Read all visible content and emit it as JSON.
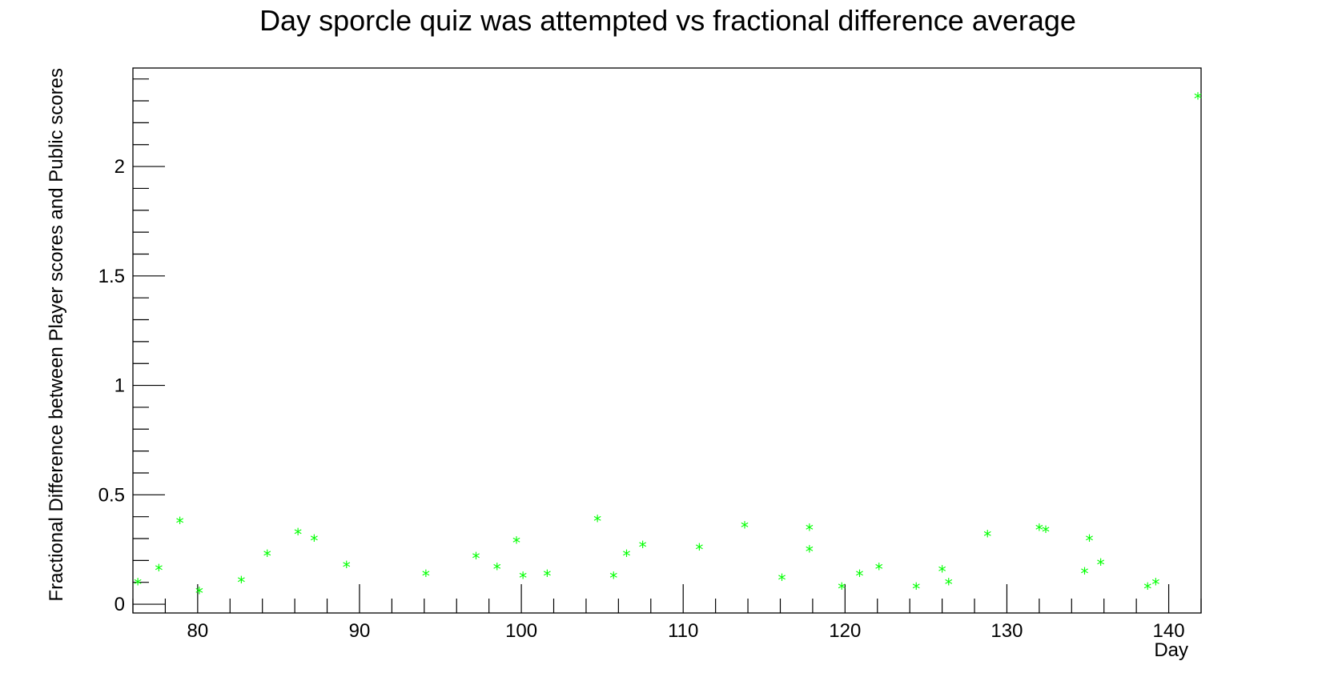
{
  "chart_data": {
    "type": "scatter",
    "title": "Day sporcle quiz was attempted vs fractional difference average",
    "xlabel": "Day",
    "ylabel": "Fractional Difference between Player scores and Public scores",
    "xlim": [
      76,
      142
    ],
    "ylim": [
      -0.04,
      2.45
    ],
    "xticks": [
      80,
      90,
      100,
      110,
      120,
      130,
      140
    ],
    "yticks": [
      0,
      0.5,
      1,
      1.5,
      2
    ],
    "x_minor_step": 2,
    "y_minor_step": 0.1,
    "marker": "*",
    "marker_color": "#00ff00",
    "series": [
      {
        "points": [
          {
            "x": 76.3,
            "y": 0.1
          },
          {
            "x": 77.6,
            "y": 0.165
          },
          {
            "x": 78.9,
            "y": 0.38
          },
          {
            "x": 80.1,
            "y": 0.06
          },
          {
            "x": 82.7,
            "y": 0.11
          },
          {
            "x": 84.3,
            "y": 0.23
          },
          {
            "x": 86.2,
            "y": 0.33
          },
          {
            "x": 87.2,
            "y": 0.3
          },
          {
            "x": 89.2,
            "y": 0.18
          },
          {
            "x": 94.1,
            "y": 0.14
          },
          {
            "x": 97.2,
            "y": 0.22
          },
          {
            "x": 98.5,
            "y": 0.17
          },
          {
            "x": 99.7,
            "y": 0.29
          },
          {
            "x": 100.1,
            "y": 0.13
          },
          {
            "x": 101.6,
            "y": 0.14
          },
          {
            "x": 104.7,
            "y": 0.39
          },
          {
            "x": 105.7,
            "y": 0.13
          },
          {
            "x": 106.5,
            "y": 0.23
          },
          {
            "x": 107.5,
            "y": 0.27
          },
          {
            "x": 111.0,
            "y": 0.26
          },
          {
            "x": 113.8,
            "y": 0.36
          },
          {
            "x": 116.1,
            "y": 0.12
          },
          {
            "x": 117.8,
            "y": 0.35
          },
          {
            "x": 117.8,
            "y": 0.25
          },
          {
            "x": 119.8,
            "y": 0.08
          },
          {
            "x": 120.9,
            "y": 0.14
          },
          {
            "x": 122.1,
            "y": 0.17
          },
          {
            "x": 124.4,
            "y": 0.08
          },
          {
            "x": 126.0,
            "y": 0.16
          },
          {
            "x": 126.4,
            "y": 0.1
          },
          {
            "x": 128.8,
            "y": 0.32
          },
          {
            "x": 132.0,
            "y": 0.35
          },
          {
            "x": 132.4,
            "y": 0.34
          },
          {
            "x": 134.8,
            "y": 0.15
          },
          {
            "x": 135.1,
            "y": 0.3
          },
          {
            "x": 135.8,
            "y": 0.19
          },
          {
            "x": 138.7,
            "y": 0.08
          },
          {
            "x": 139.2,
            "y": 0.1
          },
          {
            "x": 141.8,
            "y": 2.32
          }
        ]
      }
    ]
  }
}
